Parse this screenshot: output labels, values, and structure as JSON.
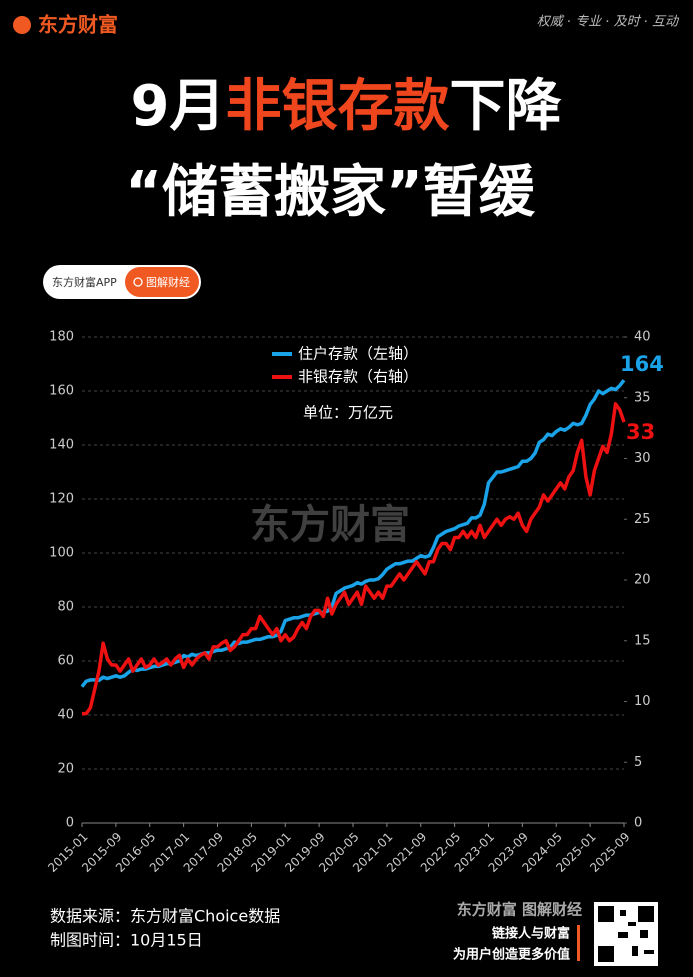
{
  "header": {
    "logo": "东方财富",
    "slogan": "权威 · 专业 · 及时 · 互动",
    "title_line1": [
      "9月",
      "非银存款",
      "下降"
    ],
    "title_line2": "“储蓄搬家”暂缓"
  },
  "badge": {
    "left": "东方财富APP",
    "right": "图解财经"
  },
  "chart_data": {
    "type": "line",
    "subtitle": "单位：万亿元",
    "watermark": "东方财富",
    "categories": [
      "2015-01",
      null,
      null,
      null,
      null,
      null,
      null,
      null,
      "2015-09",
      null,
      null,
      null,
      null,
      null,
      null,
      null,
      "2016-05",
      null,
      null,
      null,
      null,
      null,
      null,
      null,
      "2017-01",
      null,
      null,
      null,
      null,
      null,
      null,
      null,
      "2017-09",
      null,
      null,
      null,
      null,
      null,
      null,
      null,
      "2018-05",
      null,
      null,
      null,
      null,
      null,
      null,
      null,
      "2019-01",
      null,
      null,
      null,
      null,
      null,
      null,
      null,
      "2019-09",
      null,
      null,
      null,
      null,
      null,
      null,
      null,
      "2020-05",
      null,
      null,
      null,
      null,
      null,
      null,
      null,
      "2021-01",
      null,
      null,
      null,
      null,
      null,
      null,
      null,
      "2021-09",
      null,
      null,
      null,
      null,
      null,
      null,
      null,
      "2022-05",
      null,
      null,
      null,
      null,
      null,
      null,
      null,
      "2023-01",
      null,
      null,
      null,
      null,
      null,
      null,
      null,
      "2023-09",
      null,
      null,
      null,
      null,
      null,
      null,
      null,
      "2024-05",
      null,
      null,
      null,
      null,
      null,
      null,
      null,
      "2025-01",
      null,
      null,
      null,
      null,
      null,
      null,
      null,
      "2025-09"
    ],
    "series": [
      {
        "name": "住户存款（左轴）",
        "color": "#1aa3e8",
        "axis": "y",
        "values": [
          50.5,
          52.5,
          53,
          53,
          52.8,
          54,
          53.5,
          54,
          54.5,
          54,
          54.5,
          55.8,
          57,
          56.5,
          57,
          57,
          57.5,
          58,
          58,
          58.5,
          59,
          59,
          59.5,
          60,
          62,
          61.5,
          62.5,
          62,
          62.5,
          63,
          63,
          63.5,
          64,
          64,
          64.5,
          65,
          67,
          66.5,
          67,
          67,
          67.5,
          68,
          68,
          68.5,
          69,
          69,
          69.5,
          71,
          75,
          75.5,
          76,
          76,
          76.5,
          77,
          77,
          77.5,
          78,
          78,
          78.5,
          80,
          85,
          86,
          87,
          87.5,
          88,
          89,
          88.5,
          89.5,
          90,
          90,
          90.5,
          92,
          94,
          95,
          96,
          96,
          96.5,
          97,
          97,
          98,
          99,
          98.5,
          99,
          102,
          106,
          107,
          108,
          108.5,
          109,
          110,
          110.5,
          111,
          113,
          113,
          114,
          118,
          126,
          128,
          130,
          130,
          130.5,
          131,
          131.5,
          132,
          134,
          134,
          135,
          137,
          141,
          142,
          144,
          143.5,
          145,
          146,
          145.5,
          146.5,
          148,
          147.5,
          148,
          151,
          155,
          157,
          160,
          159,
          160,
          161,
          160.5,
          162,
          164
        ]
      },
      {
        "name": "非银存款（右轴）",
        "color": "#ee1111",
        "axis": "y2",
        "values": [
          9,
          9,
          9.5,
          11,
          12.5,
          14.8,
          13.5,
          13,
          13,
          12.5,
          13,
          13.5,
          12.5,
          13,
          13.5,
          12.8,
          13,
          13.5,
          13,
          13.2,
          13.5,
          13,
          13.5,
          13.8,
          12.8,
          13.5,
          13,
          13.5,
          13.8,
          14,
          13.5,
          14.5,
          14.5,
          14.8,
          15,
          14.2,
          14.5,
          15,
          15.5,
          15.5,
          16,
          16,
          17,
          16.5,
          16,
          15.5,
          16,
          15,
          15.5,
          15,
          15.3,
          16,
          16.5,
          16,
          17,
          17.5,
          17.5,
          17,
          18.5,
          17.2,
          18,
          18.5,
          19,
          18,
          18.5,
          19,
          18,
          19.5,
          19,
          18.5,
          19,
          18.5,
          19.5,
          19.5,
          20,
          20.5,
          20,
          20.5,
          21,
          21.5,
          21,
          20.5,
          21.5,
          21.5,
          22.5,
          23,
          23,
          22.5,
          23.5,
          23.5,
          24,
          23.5,
          24,
          23.5,
          24.5,
          23.5,
          24,
          24.5,
          25,
          24.5,
          25,
          25.2,
          25,
          25.5,
          24.5,
          24,
          25,
          25.5,
          26,
          27,
          26.5,
          27,
          27.5,
          28,
          27.5,
          28.5,
          29,
          30.5,
          31.5,
          28.5,
          27,
          29,
          30,
          31,
          30.5,
          32,
          34.5,
          34,
          33
        ]
      }
    ],
    "ylim": [
      0,
      180
    ],
    "yticks": [
      0,
      20,
      40,
      60,
      80,
      100,
      120,
      140,
      160,
      180
    ],
    "y2lim": [
      0,
      40
    ],
    "y2ticks": [
      0,
      5,
      10,
      15,
      20,
      25,
      30,
      35,
      40
    ],
    "grid": true,
    "legend": "top"
  },
  "footer": {
    "source": "数据来源：东方财富Choice数据",
    "date": "制图时间：10月15日",
    "brand": "东方财富 图解财经",
    "tag1": "链接人与财富",
    "tag2": "为用户创造更多价值"
  }
}
